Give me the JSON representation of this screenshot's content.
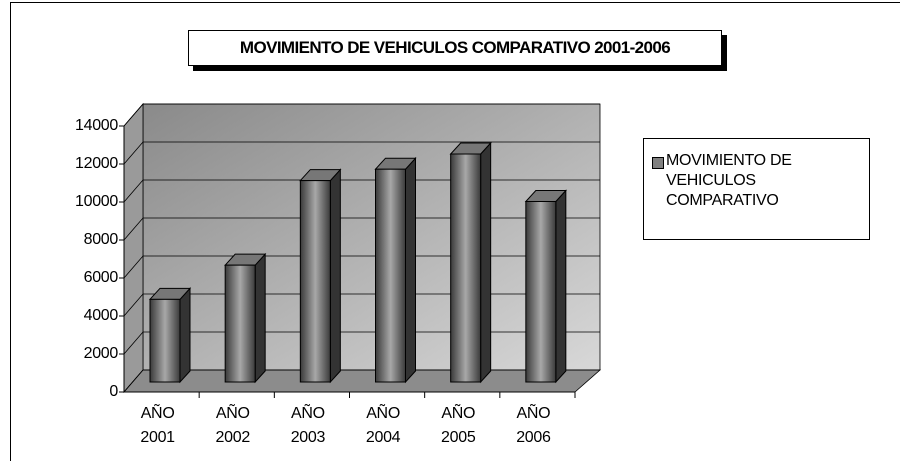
{
  "chart_data": {
    "type": "bar",
    "title": "MOVIMIENTO DE VEHICULOS COMPARATIVO 2001-2006",
    "categories": [
      "AÑO 2001",
      "AÑO 2002",
      "AÑO 2003",
      "AÑO 2004",
      "AÑO 2005",
      "AÑO 2006"
    ],
    "series": [
      {
        "name": "MOVIMIENTO DE VEHICULOS COMPARATIVO",
        "color": "#808080",
        "values": [
          4350,
          6150,
          10600,
          11200,
          12000,
          9500
        ]
      }
    ],
    "ylim": [
      0,
      14000
    ],
    "yticks": [
      0,
      2000,
      4000,
      6000,
      8000,
      10000,
      12000,
      14000
    ],
    "grid": true,
    "legend": "right"
  }
}
